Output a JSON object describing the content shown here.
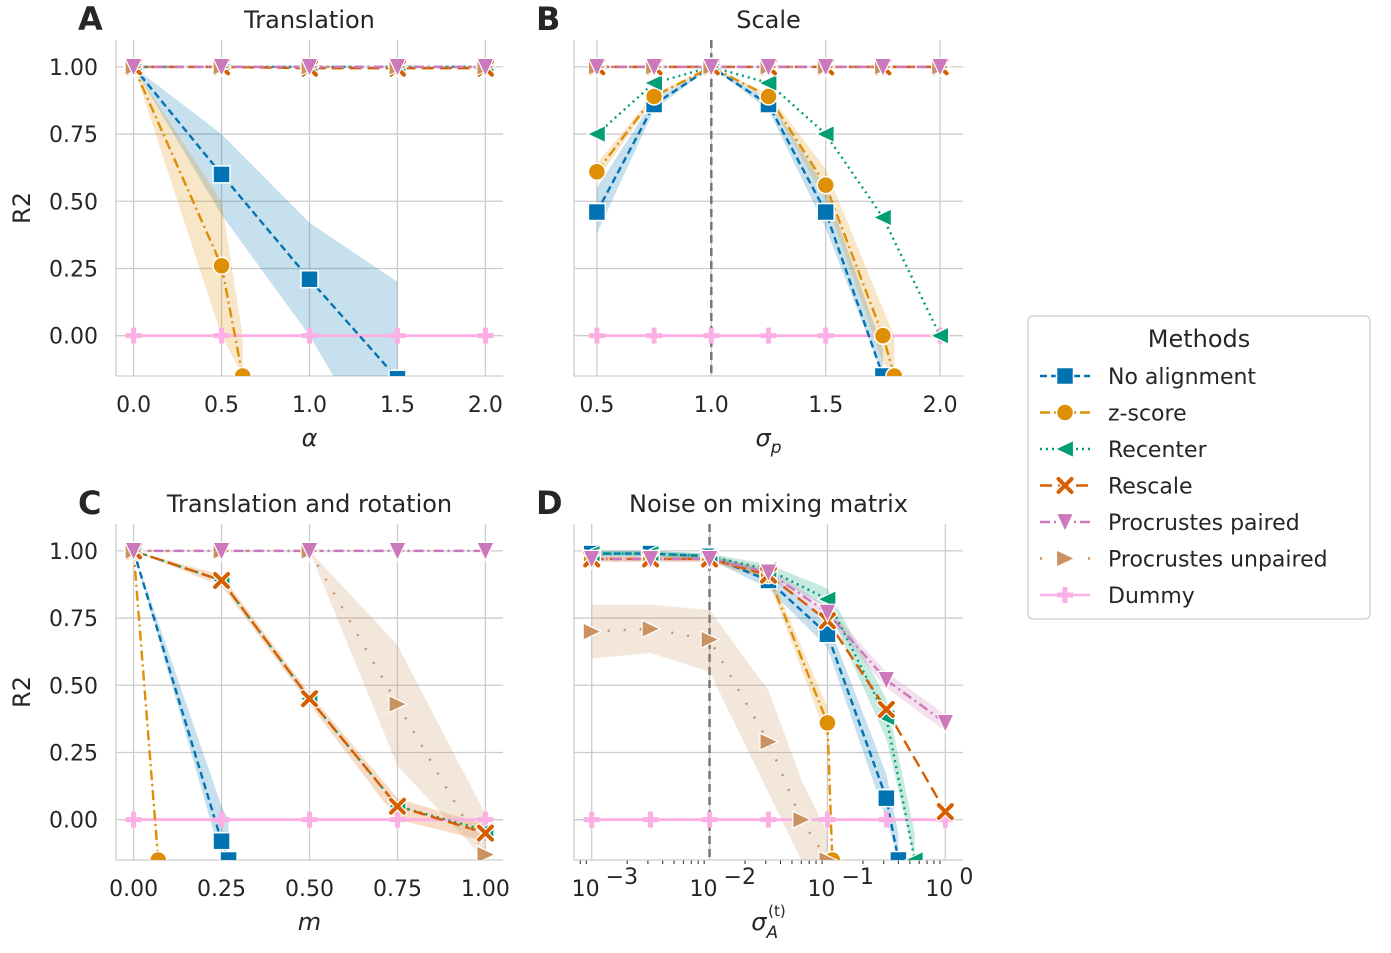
{
  "colors": {
    "no_alignment": "#0173b2",
    "zscore": "#de8f05",
    "recenter": "#029e73",
    "rescale": "#d55e00",
    "procrustes_paired": "#cc78bc",
    "procrustes_unpaired": "#ca9161",
    "dummy": "#fbafe4"
  },
  "legend": {
    "title": "Methods",
    "entries": [
      {
        "key": "no_alignment",
        "label": "No alignment",
        "marker": "square",
        "dash": "dashed"
      },
      {
        "key": "zscore",
        "label": "z-score",
        "marker": "circle",
        "dash": "dashdot"
      },
      {
        "key": "recenter",
        "label": "Recenter",
        "marker": "triangle-left",
        "dash": "dotted"
      },
      {
        "key": "rescale",
        "label": "Rescale",
        "marker": "x",
        "dash": "longdash"
      },
      {
        "key": "procrustes_paired",
        "label": "Procrustes paired",
        "marker": "triangle-down",
        "dash": "dashdot"
      },
      {
        "key": "procrustes_unpaired",
        "label": "Procrustes unpaired",
        "marker": "triangle-right",
        "dash": "sparse-dotted"
      },
      {
        "key": "dummy",
        "label": "Dummy",
        "marker": "plus",
        "dash": "solid"
      }
    ]
  },
  "chart_data": [
    {
      "id": "A",
      "letter": "A",
      "title": "Translation",
      "type": "line",
      "xlabel": "α",
      "xlabel_italic": true,
      "ylabel": "R2",
      "xscale": "linear",
      "xlim": [
        -0.1,
        2.1
      ],
      "ylim": [
        -0.15,
        1.1
      ],
      "xticks": [
        0.0,
        0.5,
        1.0,
        1.5,
        2.0
      ],
      "xticklabels": [
        "0.0",
        "0.5",
        "1.0",
        "1.5",
        "2.0"
      ],
      "yticks": [
        0.0,
        0.25,
        0.5,
        0.75,
        1.0
      ],
      "yticklabels": [
        "0.00",
        "0.25",
        "0.50",
        "0.75",
        "1.00"
      ],
      "grid": true,
      "vline": null,
      "series": [
        {
          "key": "no_alignment",
          "x": [
            0,
            0.5,
            1.0,
            1.5
          ],
          "y": [
            1.0,
            0.6,
            0.21,
            -0.16
          ],
          "ci_low": [
            1.0,
            0.45,
            0.0,
            -0.55
          ],
          "ci_high": [
            1.0,
            0.75,
            0.42,
            0.2
          ]
        },
        {
          "key": "zscore",
          "x": [
            0,
            0.5,
            0.62
          ],
          "y": [
            1.0,
            0.26,
            -0.15
          ],
          "ci_low": [
            1.0,
            0.0,
            -0.15
          ],
          "ci_high": [
            1.0,
            0.5,
            0.0
          ]
        },
        {
          "key": "recenter",
          "x": [
            0,
            0.5,
            1.0,
            1.5,
            2.0
          ],
          "y": [
            1.0,
            1.0,
            1.0,
            1.0,
            1.0
          ]
        },
        {
          "key": "rescale",
          "x": [
            0,
            0.5,
            1.0,
            1.5,
            2.0
          ],
          "y": [
            1.0,
            1.0,
            0.995,
            0.995,
            0.995
          ]
        },
        {
          "key": "procrustes_paired",
          "x": [
            0,
            0.5,
            1.0,
            1.5,
            2.0
          ],
          "y": [
            1.0,
            1.0,
            1.0,
            1.0,
            1.0
          ]
        },
        {
          "key": "procrustes_unpaired",
          "x": [
            0,
            0.5,
            1.0,
            1.5,
            2.0
          ],
          "y": [
            1.0,
            1.0,
            1.0,
            1.0,
            1.0
          ]
        },
        {
          "key": "dummy",
          "x": [
            0,
            0.5,
            1.0,
            1.5,
            2.0
          ],
          "y": [
            0.0,
            0.0,
            0.0,
            0.0,
            0.0
          ]
        }
      ]
    },
    {
      "id": "B",
      "letter": "B",
      "title": "Scale",
      "type": "line",
      "xlabel": "σ_p",
      "xlabel_italic": true,
      "ylabel": "",
      "xscale": "linear",
      "xlim": [
        0.4,
        2.1
      ],
      "ylim": [
        -0.15,
        1.1
      ],
      "xticks": [
        0.5,
        1.0,
        1.5,
        2.0
      ],
      "xticklabels": [
        "0.5",
        "1.0",
        "1.5",
        "2.0"
      ],
      "yticks": [
        0.0,
        0.25,
        0.5,
        0.75,
        1.0
      ],
      "yticklabels": [],
      "grid": true,
      "vline": 1.0,
      "series": [
        {
          "key": "no_alignment",
          "x": [
            0.5,
            0.75,
            1.0,
            1.25,
            1.5,
            1.75
          ],
          "y": [
            0.46,
            0.86,
            1.0,
            0.86,
            0.46,
            -0.15
          ],
          "ci_low": [
            0.38,
            0.84,
            1.0,
            0.84,
            0.4,
            -0.15
          ],
          "ci_high": [
            0.55,
            0.88,
            1.0,
            0.88,
            0.55,
            -0.05
          ]
        },
        {
          "key": "zscore",
          "x": [
            0.5,
            0.75,
            1.0,
            1.25,
            1.5,
            1.75,
            1.8
          ],
          "y": [
            0.61,
            0.89,
            1.0,
            0.89,
            0.56,
            0.0,
            -0.15
          ],
          "ci_low": [
            0.58,
            0.88,
            1.0,
            0.88,
            0.5,
            -0.1,
            -0.15
          ],
          "ci_high": [
            0.64,
            0.9,
            1.0,
            0.9,
            0.62,
            0.1,
            0.0
          ]
        },
        {
          "key": "recenter",
          "x": [
            0.5,
            0.75,
            1.0,
            1.25,
            1.5,
            1.75,
            2.0
          ],
          "y": [
            0.75,
            0.94,
            1.0,
            0.94,
            0.75,
            0.44,
            0.0
          ]
        },
        {
          "key": "rescale",
          "x": [
            0.5,
            0.75,
            1.0,
            1.25,
            1.5,
            1.75,
            2.0
          ],
          "y": [
            1.0,
            1.0,
            1.0,
            1.0,
            1.0,
            1.0,
            1.0
          ]
        },
        {
          "key": "procrustes_paired",
          "x": [
            0.5,
            0.75,
            1.0,
            1.25,
            1.5,
            1.75,
            2.0
          ],
          "y": [
            1.0,
            1.0,
            1.0,
            1.0,
            1.0,
            1.0,
            1.0
          ]
        },
        {
          "key": "procrustes_unpaired",
          "x": [
            0.5,
            0.75,
            1.0,
            1.25,
            1.5,
            1.75,
            2.0
          ],
          "y": [
            1.0,
            1.0,
            1.0,
            1.0,
            1.0,
            1.0,
            1.0
          ]
        },
        {
          "key": "dummy",
          "x": [
            0.5,
            0.75,
            1.0,
            1.25,
            1.5,
            1.75,
            2.0
          ],
          "y": [
            0.0,
            0.0,
            0.0,
            0.0,
            0.0,
            0.0,
            0.0
          ]
        }
      ]
    },
    {
      "id": "C",
      "letter": "C",
      "title": "Translation and rotation",
      "type": "line",
      "xlabel": "m",
      "xlabel_italic": true,
      "ylabel": "R2",
      "xscale": "linear",
      "xlim": [
        -0.05,
        1.05
      ],
      "ylim": [
        -0.15,
        1.1
      ],
      "xticks": [
        0.0,
        0.25,
        0.5,
        0.75,
        1.0
      ],
      "xticklabels": [
        "0.00",
        "0.25",
        "0.50",
        "0.75",
        "1.00"
      ],
      "yticks": [
        0.0,
        0.25,
        0.5,
        0.75,
        1.0
      ],
      "yticklabels": [
        "0.00",
        "0.25",
        "0.50",
        "0.75",
        "1.00"
      ],
      "grid": true,
      "vline": null,
      "series": [
        {
          "key": "no_alignment",
          "x": [
            0,
            0.25,
            0.27
          ],
          "y": [
            1.0,
            -0.08,
            -0.15
          ],
          "ci_low": [
            1.0,
            -0.15,
            -0.15
          ],
          "ci_high": [
            1.0,
            0.05,
            0.0
          ]
        },
        {
          "key": "zscore",
          "x": [
            0,
            0.07
          ],
          "y": [
            1.0,
            -0.15
          ],
          "ci_low": [
            1.0,
            -0.15
          ],
          "ci_high": [
            1.0,
            -0.1
          ]
        },
        {
          "key": "recenter",
          "x": [
            0,
            0.25,
            0.5,
            0.75,
            1.0
          ],
          "y": [
            1.0,
            0.89,
            0.45,
            0.05,
            -0.04
          ]
        },
        {
          "key": "rescale",
          "x": [
            0,
            0.25,
            0.5,
            0.75,
            1.0
          ],
          "y": [
            1.0,
            0.89,
            0.45,
            0.05,
            -0.05
          ],
          "ci_low": [
            1.0,
            0.87,
            0.43,
            0.0,
            -0.08
          ],
          "ci_high": [
            1.0,
            0.91,
            0.47,
            0.08,
            -0.02
          ]
        },
        {
          "key": "procrustes_paired",
          "x": [
            0,
            0.25,
            0.5,
            0.75,
            1.0
          ],
          "y": [
            1.0,
            1.0,
            1.0,
            1.0,
            1.0
          ]
        },
        {
          "key": "procrustes_unpaired",
          "x": [
            0,
            0.25,
            0.5,
            0.75,
            1.0
          ],
          "y": [
            1.0,
            1.0,
            1.0,
            0.43,
            -0.13
          ],
          "ci_low": [
            1.0,
            1.0,
            1.0,
            0.2,
            -0.15
          ],
          "ci_high": [
            1.0,
            1.0,
            1.0,
            0.65,
            0.02
          ]
        },
        {
          "key": "dummy",
          "x": [
            0,
            0.25,
            0.5,
            0.75,
            1.0
          ],
          "y": [
            0.0,
            0.0,
            0.0,
            0.0,
            0.0
          ]
        }
      ]
    },
    {
      "id": "D",
      "letter": "D",
      "title": "Noise on mixing matrix",
      "type": "line",
      "xlabel": "σ_A^(t)",
      "xlabel_italic": true,
      "ylabel": "",
      "xscale": "log",
      "xlim": [
        -3.15,
        0.15
      ],
      "ylim": [
        -0.15,
        1.1
      ],
      "xticks": [
        -3,
        -2,
        -1,
        0
      ],
      "xticklabels": [
        "10",
        "10",
        "10",
        "10"
      ],
      "xtickexps": [
        "−3",
        "−2",
        "−1",
        "0"
      ],
      "yticks": [
        0.0,
        0.25,
        0.5,
        0.75,
        1.0
      ],
      "yticklabels": [],
      "grid": true,
      "vline": -2,
      "series": [
        {
          "key": "no_alignment",
          "x": [
            0.001,
            0.00316,
            0.01,
            0.0316,
            0.1,
            0.316,
            0.4
          ],
          "y": [
            0.99,
            0.99,
            0.98,
            0.89,
            0.69,
            0.08,
            -0.15
          ],
          "ci_low": [
            0.98,
            0.98,
            0.97,
            0.86,
            0.64,
            0.0,
            -0.15
          ],
          "ci_high": [
            1.0,
            1.0,
            0.99,
            0.92,
            0.74,
            0.17,
            -0.05
          ]
        },
        {
          "key": "zscore",
          "x": [
            0.001,
            0.00316,
            0.01,
            0.0316,
            0.1,
            0.11
          ],
          "y": [
            0.97,
            0.97,
            0.97,
            0.91,
            0.36,
            -0.15
          ],
          "ci_low": [
            0.96,
            0.96,
            0.96,
            0.89,
            0.3,
            -0.15
          ],
          "ci_high": [
            0.98,
            0.98,
            0.98,
            0.93,
            0.42,
            -0.05
          ]
        },
        {
          "key": "recenter",
          "x": [
            0.001,
            0.00316,
            0.01,
            0.0316,
            0.1,
            0.316,
            0.55
          ],
          "y": [
            0.99,
            0.99,
            0.98,
            0.93,
            0.82,
            0.38,
            -0.15
          ],
          "ci_low": [
            0.98,
            0.98,
            0.97,
            0.91,
            0.79,
            0.3,
            -0.15
          ],
          "ci_high": [
            1.0,
            1.0,
            0.99,
            0.95,
            0.86,
            0.45,
            -0.05
          ]
        },
        {
          "key": "rescale",
          "x": [
            0.001,
            0.00316,
            0.01,
            0.0316,
            0.1,
            0.316,
            1.0
          ],
          "y": [
            0.97,
            0.97,
            0.97,
            0.91,
            0.74,
            0.41,
            0.03
          ]
        },
        {
          "key": "procrustes_paired",
          "x": [
            0.001,
            0.00316,
            0.01,
            0.0316,
            0.1,
            0.316,
            1.0
          ],
          "y": [
            0.97,
            0.97,
            0.97,
            0.92,
            0.77,
            0.52,
            0.36
          ],
          "ci_low": [
            0.96,
            0.96,
            0.96,
            0.9,
            0.75,
            0.49,
            0.33
          ],
          "ci_high": [
            0.98,
            0.98,
            0.98,
            0.94,
            0.79,
            0.55,
            0.39
          ]
        },
        {
          "key": "procrustes_unpaired",
          "x": [
            0.001,
            0.00316,
            0.01,
            0.0316,
            0.06,
            0.1
          ],
          "y": [
            0.7,
            0.71,
            0.67,
            0.29,
            0.0,
            -0.15
          ],
          "ci_low": [
            0.6,
            0.62,
            0.55,
            0.1,
            -0.15,
            -0.15
          ],
          "ci_high": [
            0.8,
            0.8,
            0.78,
            0.48,
            0.15,
            -0.05
          ]
        },
        {
          "key": "dummy",
          "x": [
            0.001,
            0.00316,
            0.01,
            0.0316,
            0.1,
            0.316,
            1.0
          ],
          "y": [
            0.0,
            0.0,
            0.0,
            0.0,
            0.0,
            0.0,
            0.0
          ]
        }
      ]
    }
  ]
}
